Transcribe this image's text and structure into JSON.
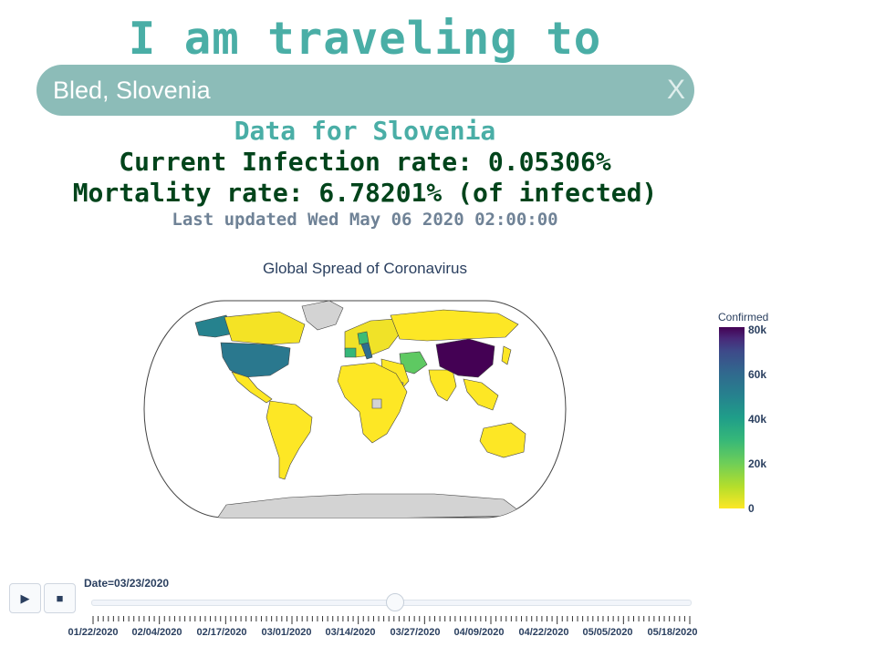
{
  "header": {
    "title": "I am traveling to"
  },
  "search": {
    "value": "Bled, Slovenia",
    "clear_label": "X"
  },
  "stats": {
    "heading": "Data for Slovenia",
    "infection_rate": "Current Infection rate: 0.05306%",
    "mortality_rate": "Mortality rate: 6.78201% (of infected)",
    "last_updated": "Last updated Wed May 06 2020 02:00:00"
  },
  "chart_data": {
    "type": "choropleth",
    "title": "Global Spread of Coronavirus",
    "colorbar": {
      "title": "Confirmed",
      "ticks": [
        "80k",
        "60k",
        "40k",
        "20k",
        "0"
      ],
      "range": [
        0,
        80000
      ],
      "colorscale": "viridis (reversed)"
    },
    "highlighted": [
      {
        "region": "China",
        "level": "80k"
      },
      {
        "region": "USA",
        "level": "approx. 45k"
      },
      {
        "region": "Italy",
        "level": "approx. 45k"
      },
      {
        "region": "Iran",
        "level": "approx. 25k"
      },
      {
        "region": "Spain",
        "level": "approx. 30k"
      },
      {
        "region": "Germany",
        "level": "approx. 25k"
      }
    ],
    "colors": {
      "no_data": "#d3d3d3",
      "low": "#fde725",
      "high": "#440154"
    }
  },
  "animation": {
    "play_icon": "play-icon",
    "stop_icon": "stop-icon",
    "slider_label": "Date=03/23/2020",
    "current_fraction": 0.5,
    "dates": [
      "01/22/2020",
      "02/04/2020",
      "02/17/2020",
      "03/01/2020",
      "03/14/2020",
      "03/27/2020",
      "04/09/2020",
      "04/22/2020",
      "05/05/2020",
      "05/18/2020"
    ]
  }
}
